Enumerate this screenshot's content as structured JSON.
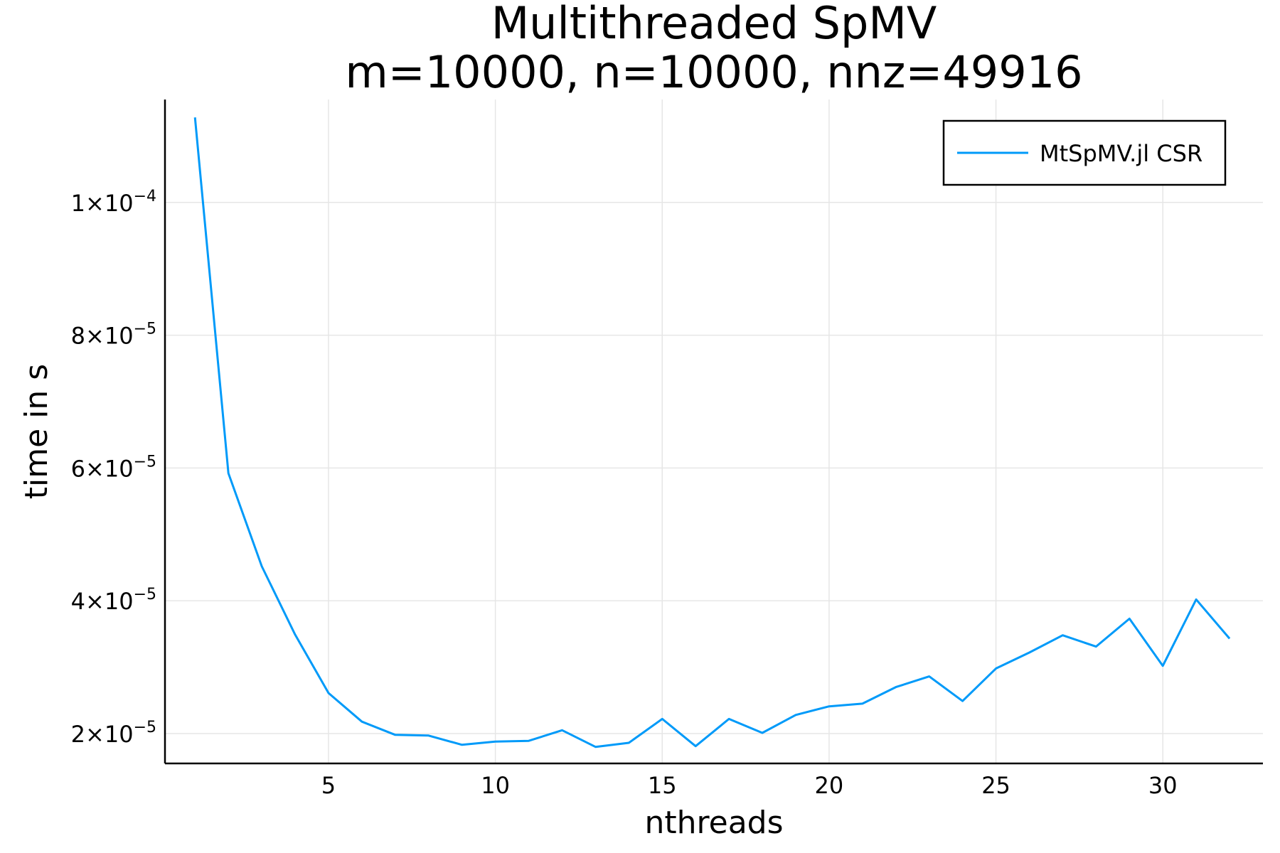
{
  "chart_data": {
    "type": "line",
    "title": "Multithreaded SpMV",
    "subtitle": "m=10000, n=10000, nnz=49916",
    "xlabel": "nthreads",
    "ylabel": "time in s",
    "xlim": [
      0.1,
      33
    ],
    "ylim": [
      1.55e-05,
      0.0001155
    ],
    "grid": true,
    "legend_position": "top-right",
    "x_ticks": [
      {
        "value": 5,
        "label": "5"
      },
      {
        "value": 10,
        "label": "10"
      },
      {
        "value": 15,
        "label": "15"
      },
      {
        "value": 20,
        "label": "20"
      },
      {
        "value": 25,
        "label": "25"
      },
      {
        "value": 30,
        "label": "30"
      }
    ],
    "y_ticks": [
      {
        "value": 2e-05,
        "mantissa": "2",
        "exponent": "−5"
      },
      {
        "value": 4e-05,
        "mantissa": "4",
        "exponent": "−5"
      },
      {
        "value": 6e-05,
        "mantissa": "6",
        "exponent": "−5"
      },
      {
        "value": 8e-05,
        "mantissa": "8",
        "exponent": "−5"
      },
      {
        "value": 0.0001,
        "mantissa": "1",
        "exponent": "−4"
      }
    ],
    "series": [
      {
        "name": "MtSpMV.jl CSR",
        "color": "#009af9",
        "x": [
          1,
          2,
          3,
          4,
          5,
          6,
          7,
          8,
          9,
          10,
          11,
          12,
          13,
          14,
          15,
          16,
          17,
          18,
          19,
          20,
          21,
          22,
          23,
          24,
          25,
          26,
          27,
          28,
          29,
          30,
          31,
          32
        ],
        "y": [
          0.0001128,
          5.92e-05,
          4.52e-05,
          3.49e-05,
          2.61e-05,
          2.18e-05,
          1.98e-05,
          1.97e-05,
          1.83e-05,
          1.88e-05,
          1.89e-05,
          2.05e-05,
          1.8e-05,
          1.86e-05,
          2.22e-05,
          1.81e-05,
          2.22e-05,
          2.01e-05,
          2.28e-05,
          2.41e-05,
          2.45e-05,
          2.7e-05,
          2.86e-05,
          2.49e-05,
          2.98e-05,
          3.22e-05,
          3.48e-05,
          3.31e-05,
          3.73e-05,
          3.02e-05,
          4.02e-05,
          3.43e-05
        ]
      }
    ]
  }
}
